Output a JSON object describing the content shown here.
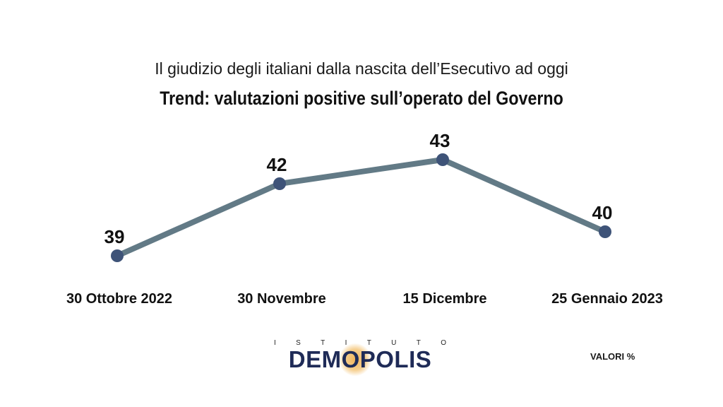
{
  "header": {
    "subtitle": "Il giudizio degli italiani dalla nascita dell’Esecutivo ad oggi",
    "title": "Trend: valutazioni positive sull’operato del Governo"
  },
  "chart_data": {
    "type": "line",
    "title": "Trend: valutazioni positive sull’operato del Governo",
    "subtitle": "Il giudizio degli italiani dalla nascita dell’Esecutivo ad oggi",
    "categories": [
      "30 Ottobre 2022",
      "30 Novembre",
      "15 Dicembre",
      "25 Gennaio 2023"
    ],
    "series": [
      {
        "values": [
          39,
          42,
          43,
          40
        ],
        "color": "#627a86",
        "marker_color": "#3e5378"
      }
    ],
    "data_labels": [
      "39",
      "42",
      "43",
      "40"
    ],
    "grid": false,
    "legend": "none"
  },
  "footer": {
    "logo_top": [
      "I",
      "S",
      "T",
      "I",
      "T",
      "U",
      "T",
      "O"
    ],
    "logo_text": "DEMOPOLIS",
    "units": "VALORI %"
  },
  "colors": {
    "line": "#627a86",
    "marker": "#3e5378",
    "logo": "#1f2b57",
    "logo_glow": "#f2b45a"
  }
}
